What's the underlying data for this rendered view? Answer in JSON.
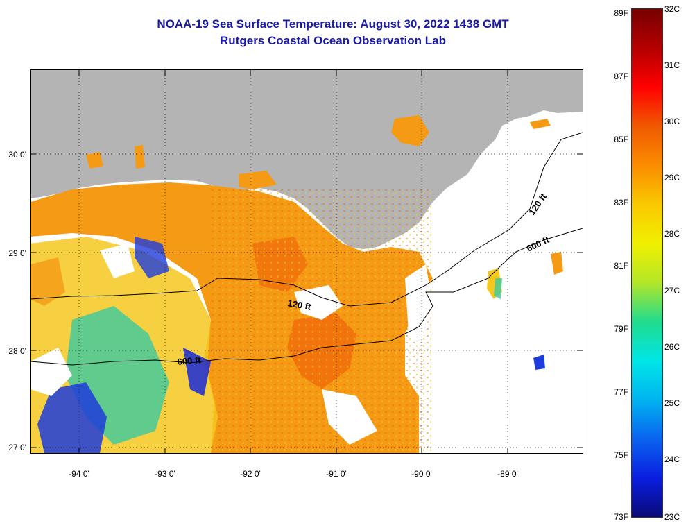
{
  "title": "NOAA-19 Sea Surface Temperature:  August 30, 2022 1438 GMT",
  "subtitle": "Rutgers Coastal Ocean Observation Lab",
  "lat_labels": [
    "30 0'",
    "29 0'",
    "28 0'",
    "27 0'"
  ],
  "lon_labels": [
    "-94 0'",
    "-93 0'",
    "-92 0'",
    "-91 0'",
    "-90 0'",
    "-89 0'"
  ],
  "contours": {
    "shelf_120_upper": "120 ft",
    "shelf_600_upper": "600 ft",
    "shelf_120_lower": "120 ft",
    "shelf_600_lower": "600 ft"
  },
  "colorbar": {
    "fahrenheit_labels": [
      "89F",
      "87F",
      "85F",
      "83F",
      "81F",
      "79F",
      "77F",
      "75F",
      "73F"
    ],
    "celsius_labels": [
      "32C",
      "31C",
      "30C",
      "29C",
      "28C",
      "27C",
      "26C",
      "25C",
      "24C",
      "23C"
    ],
    "stops": [
      "#0a0a78",
      "#0a1ee0",
      "#0a64f0",
      "#00b4f0",
      "#00e6e6",
      "#20dc8c",
      "#b4e628",
      "#f0f000",
      "#fac800",
      "#fa8c00",
      "#f05a00",
      "#ff0000",
      "#b40000",
      "#780000"
    ]
  },
  "colors": {
    "land": "#b4b4b4",
    "title": "#1a1aa8",
    "sst_warm": "#f59a14",
    "sst_hot": "#f06a0a",
    "sst_mid": "#f5c81e",
    "sst_cool": "#3cc8a0",
    "sst_cold": "#1e3cdc"
  }
}
